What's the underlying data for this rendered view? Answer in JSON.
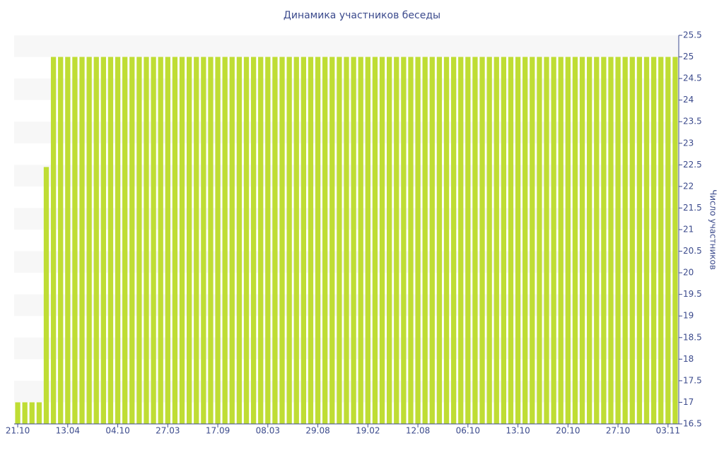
{
  "chart_data": {
    "type": "bar",
    "title": "Динамика участников беседы",
    "y_axis_label": "Число участников",
    "y_axis_side": "right",
    "color": "#bfdd34",
    "grid": "bands",
    "categories": [
      "21.10",
      null,
      null,
      null,
      null,
      null,
      null,
      "13.04",
      null,
      null,
      null,
      null,
      null,
      null,
      "04.10",
      null,
      null,
      null,
      null,
      null,
      null,
      "27.03",
      null,
      null,
      null,
      null,
      null,
      null,
      "17.09",
      null,
      null,
      null,
      null,
      null,
      null,
      "08.03",
      null,
      null,
      null,
      null,
      null,
      null,
      "29.08",
      null,
      null,
      null,
      null,
      null,
      null,
      "19.02",
      null,
      null,
      null,
      null,
      null,
      null,
      "12.08",
      null,
      null,
      null,
      null,
      null,
      null,
      "06.10",
      null,
      null,
      null,
      null,
      null,
      null,
      "13.10",
      null,
      null,
      null,
      null,
      null,
      null,
      "20.10",
      null,
      null,
      null,
      null,
      null,
      null,
      "27.10",
      null,
      null,
      null,
      null,
      null,
      null,
      "03.11",
      null
    ],
    "values": [
      17,
      17,
      17,
      17,
      22.45,
      25,
      25,
      25,
      25,
      25,
      25,
      25,
      25,
      25,
      25,
      25,
      25,
      25,
      25,
      25,
      25,
      25,
      25,
      25,
      25,
      25,
      25,
      25,
      25,
      25,
      25,
      25,
      25,
      25,
      25,
      25,
      25,
      25,
      25,
      25,
      25,
      25,
      25,
      25,
      25,
      25,
      25,
      25,
      25,
      25,
      25,
      25,
      25,
      25,
      25,
      25,
      25,
      25,
      25,
      25,
      25,
      25,
      25,
      25,
      25,
      25,
      25,
      25,
      25,
      25,
      25,
      25,
      25,
      25,
      25,
      25,
      25,
      25,
      25,
      25,
      25,
      25,
      25,
      25,
      25,
      25,
      25,
      25,
      25,
      25,
      25,
      25,
      25
    ],
    "ylim": [
      16.5,
      25.5
    ],
    "yticks": [
      16.5,
      17,
      17.5,
      18,
      18.5,
      19,
      19.5,
      20,
      20.5,
      21,
      21.5,
      22,
      22.5,
      23,
      23.5,
      24,
      24.5,
      25,
      25.5
    ]
  }
}
